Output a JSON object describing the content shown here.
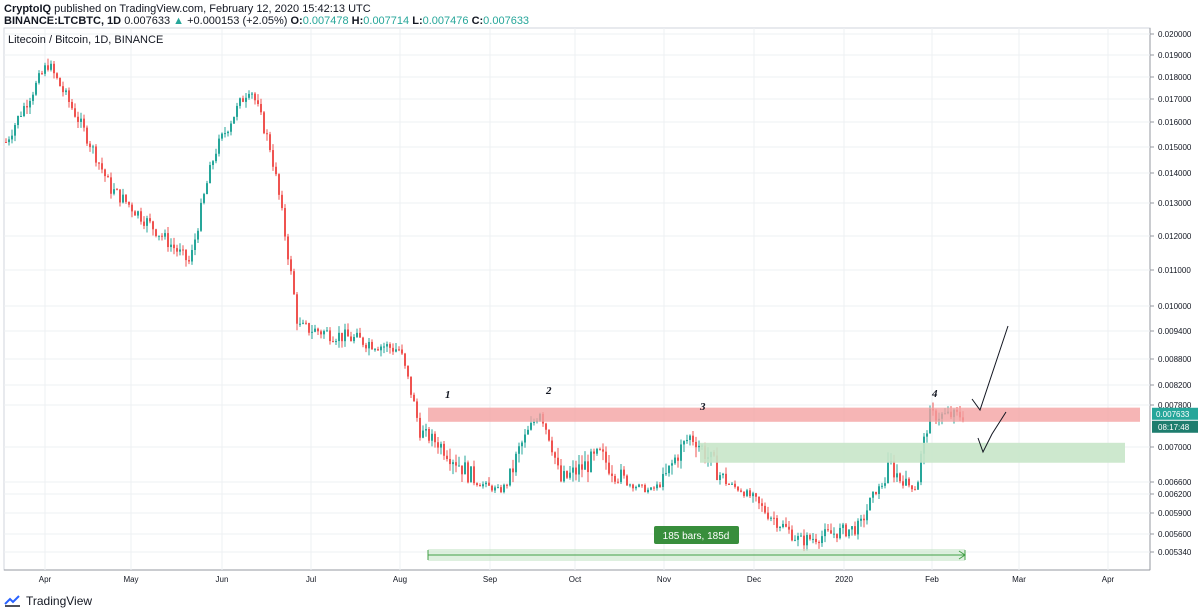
{
  "header": {
    "author": "CryptoIQ",
    "published": "published on TradingView.com, February 12, 2020 15:42:13 UTC",
    "symbol": "BINANCE:LTCBTC, 1D",
    "price": "0.007633",
    "change": "+0.000153 (+2.05%)",
    "o_label": "O:",
    "o_val": "0.007478",
    "h_label": "H:",
    "h_val": "0.007714",
    "l_label": "L:",
    "l_val": "0.007476",
    "c_label": "C:",
    "c_val": "0.007633"
  },
  "chart_title": "Litecoin / Bitcoin, 1D, BINANCE",
  "footer": {
    "brand": "TradingView"
  },
  "colors": {
    "up": "#26a69a",
    "down": "#ef5350",
    "resistance": "#f4a3a3",
    "support": "#c8e6c9",
    "measure": "#43a047",
    "grid": "#eef0f3"
  },
  "chart_data": {
    "type": "candlestick",
    "title": "Litecoin / Bitcoin, 1D, BINANCE",
    "y_ticks": [
      "0.020000",
      "0.019000",
      "0.018000",
      "0.017000",
      "0.016000",
      "0.015000",
      "0.014000",
      "0.013000",
      "0.012000",
      "0.011000",
      "0.010000",
      "0.009400",
      "0.008800",
      "0.008200",
      "0.007800",
      "0.007000",
      "0.006600",
      "0.006200",
      "0.005900",
      "0.005600",
      "0.005340"
    ],
    "x_labels": [
      "Apr",
      "May",
      "Jun",
      "Jul",
      "Aug",
      "Sep",
      "Oct",
      "Nov",
      "Dec",
      "2020",
      "Feb",
      "Mar",
      "Apr"
    ],
    "last_price": "0.007633",
    "countdown": "08:17:48",
    "close_path": [
      [
        "Apr",
        0.0152
      ],
      [
        "Apr",
        0.0186
      ],
      [
        "May",
        0.0135
      ],
      [
        "May",
        0.0112
      ],
      [
        "Jun",
        0.0148
      ],
      [
        "Jun",
        0.0176
      ],
      [
        "Jul",
        0.015
      ],
      [
        "Jul",
        0.0095
      ],
      [
        "Aug",
        0.0093
      ],
      [
        "Aug",
        0.0075
      ],
      [
        "Sep",
        0.0064
      ],
      [
        "Sep",
        0.0078
      ],
      [
        "Oct",
        0.0069
      ],
      [
        "Nov",
        0.0065
      ],
      [
        "Nov",
        0.0072
      ],
      [
        "Dec",
        0.0061
      ],
      [
        "Dec",
        0.0055
      ],
      [
        "2020",
        0.0056
      ],
      [
        "2020",
        0.0068
      ],
      [
        "Feb",
        0.0066
      ],
      [
        "Feb",
        0.0077
      ],
      [
        "Feb",
        0.0076
      ]
    ],
    "annotations": {
      "resistance_zone": [
        0.00748,
        0.00775
      ],
      "support_zone": [
        0.00682,
        0.00708
      ],
      "peak_labels": [
        "1",
        "2",
        "3",
        "4"
      ],
      "measure_label": "185 bars, 185d"
    }
  }
}
